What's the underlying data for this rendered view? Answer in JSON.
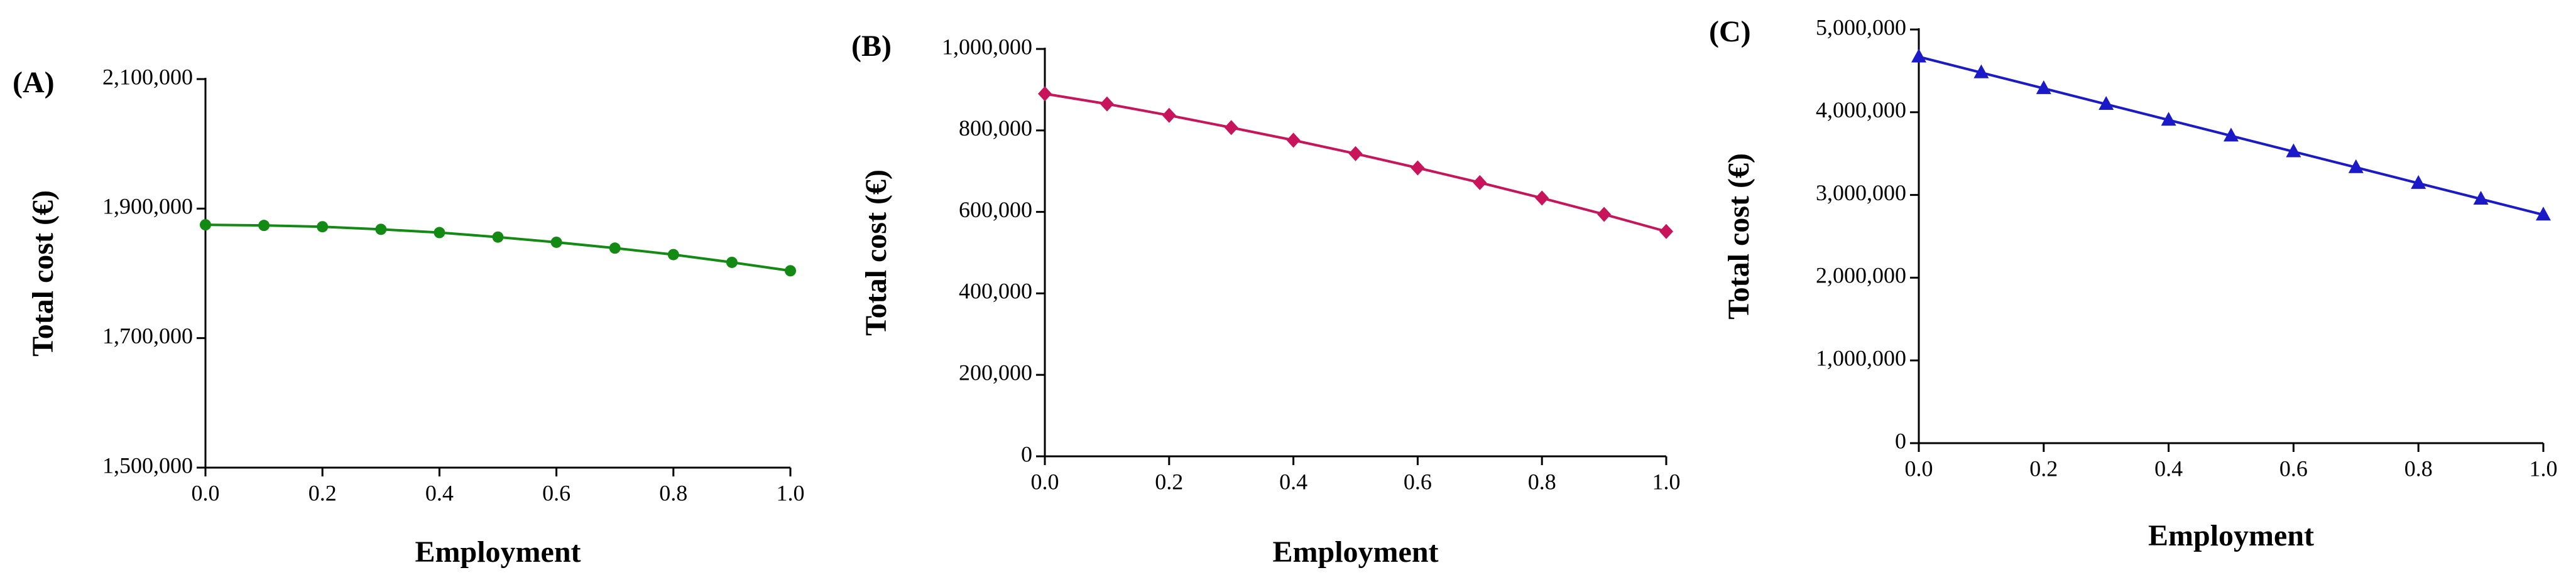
{
  "chart_data": [
    {
      "type": "line",
      "panel": "(A)",
      "xlabel": "Employment",
      "ylabel": "Total cost (€)",
      "x": [
        0,
        0.1,
        0.2,
        0.3,
        0.4,
        0.5,
        0.6,
        0.7,
        0.8,
        0.9,
        1
      ],
      "values": [
        1875000,
        1874000,
        1872000,
        1868000,
        1863000,
        1856000,
        1848000,
        1839000,
        1829000,
        1817000,
        1804000
      ],
      "color": "#138a13",
      "marker": "circle",
      "xlim": [
        0,
        1
      ],
      "xticks": [
        {
          "value": 0,
          "label": "0.0"
        },
        0.2,
        0.4,
        0.6,
        0.8,
        {
          "value": 1,
          "label": "1.0"
        }
      ],
      "ylim": [
        1500000,
        2100000
      ],
      "yticks": [
        {
          "value": 1500000,
          "label": "1,500,000"
        },
        {
          "value": 1700000,
          "label": "1,700,000"
        },
        {
          "value": 1900000,
          "label": "1,900,000"
        },
        {
          "value": 2100000,
          "label": "2,100,000"
        }
      ]
    },
    {
      "type": "line",
      "panel": "(B)",
      "xlabel": "Employment",
      "ylabel": "Total cost (€)",
      "x": [
        0,
        0.1,
        0.2,
        0.3,
        0.4,
        0.5,
        0.6,
        0.7,
        0.8,
        0.9,
        1
      ],
      "values": [
        890000,
        865000,
        837000,
        807000,
        776000,
        743000,
        708000,
        672000,
        634000,
        594000,
        552000
      ],
      "color": "#c8145a",
      "marker": "diamond",
      "xlim": [
        0,
        1
      ],
      "xticks": [
        {
          "value": 0,
          "label": "0.0"
        },
        0.2,
        0.4,
        0.6,
        0.8,
        {
          "value": 1,
          "label": "1.0"
        }
      ],
      "ylim": [
        0,
        1000000
      ],
      "yticks": [
        0,
        {
          "value": 200000,
          "label": "200,000"
        },
        {
          "value": 400000,
          "label": "400,000"
        },
        {
          "value": 600000,
          "label": "600,000"
        },
        {
          "value": 800000,
          "label": "800,000"
        },
        {
          "value": 1000000,
          "label": "1,000,000"
        }
      ]
    },
    {
      "type": "line",
      "panel": "(C)",
      "xlabel": "Employment",
      "ylabel": "Total cost (€)",
      "x": [
        0,
        0.1,
        0.2,
        0.3,
        0.4,
        0.5,
        0.6,
        0.7,
        0.8,
        0.9,
        1
      ],
      "values": [
        4670000,
        4479000,
        4288000,
        4097000,
        3906000,
        3715000,
        3524000,
        3333000,
        3142000,
        2951000,
        2760000
      ],
      "color": "#1a1ac8",
      "marker": "triangle",
      "xlim": [
        0,
        1
      ],
      "xticks": [
        {
          "value": 0,
          "label": "0.0"
        },
        0.2,
        0.4,
        0.6,
        0.8,
        {
          "value": 1,
          "label": "1.0"
        }
      ],
      "ylim": [
        0,
        5000000
      ],
      "yticks": [
        0,
        {
          "value": 1000000,
          "label": "1,000,000"
        },
        {
          "value": 2000000,
          "label": "2,000,000"
        },
        {
          "value": 3000000,
          "label": "3,000,000"
        },
        {
          "value": 4000000,
          "label": "4,000,000"
        },
        {
          "value": 5000000,
          "label": "5,000,000"
        }
      ]
    }
  ]
}
